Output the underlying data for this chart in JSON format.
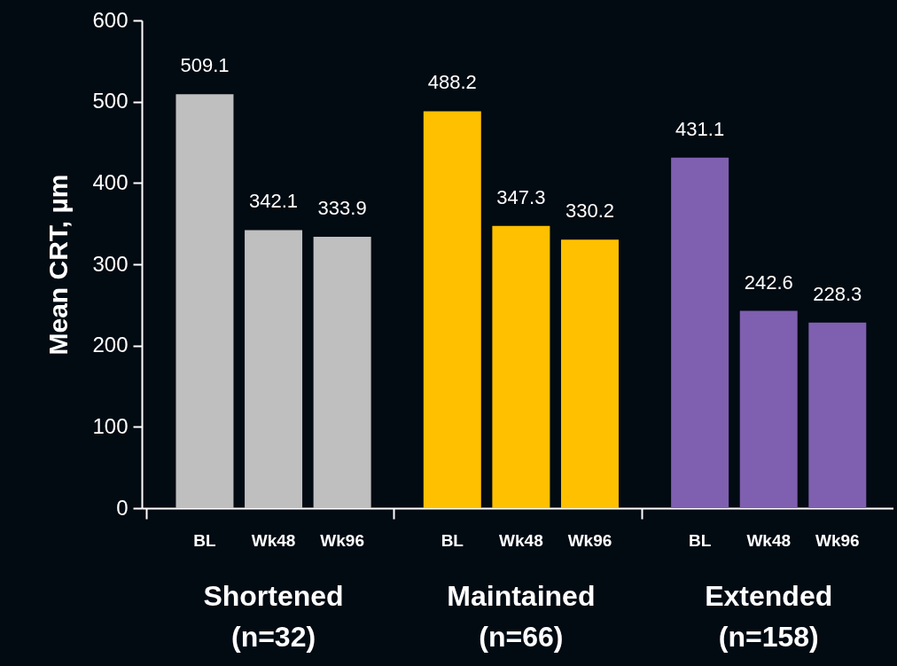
{
  "chart_data": {
    "type": "bar",
    "ylabel": "Mean CRT, µm",
    "categories": [
      "BL",
      "Wk48",
      "Wk96",
      "BL",
      "Wk48",
      "Wk96",
      "BL",
      "Wk48",
      "Wk96"
    ],
    "series": [
      {
        "name": "Shortened (n=32)",
        "color": "#bfbfbf",
        "values": [
          509.1,
          342.1,
          333.9,
          null,
          null,
          null,
          null,
          null,
          null
        ]
      },
      {
        "name": "Maintained (n=66)",
        "color": "#ffc000",
        "values": [
          null,
          null,
          null,
          488.2,
          347.3,
          330.2,
          null,
          null,
          null
        ]
      },
      {
        "name": "Extended (n=158)",
        "color": "#7f5fb0",
        "values": [
          null,
          null,
          null,
          null,
          null,
          null,
          431.1,
          242.6,
          228.3
        ]
      }
    ],
    "ylim": [
      0,
      600
    ],
    "yticks": [
      0,
      100,
      200,
      300,
      400,
      500,
      600
    ],
    "data_labels": true,
    "grid": false,
    "legend": false
  }
}
